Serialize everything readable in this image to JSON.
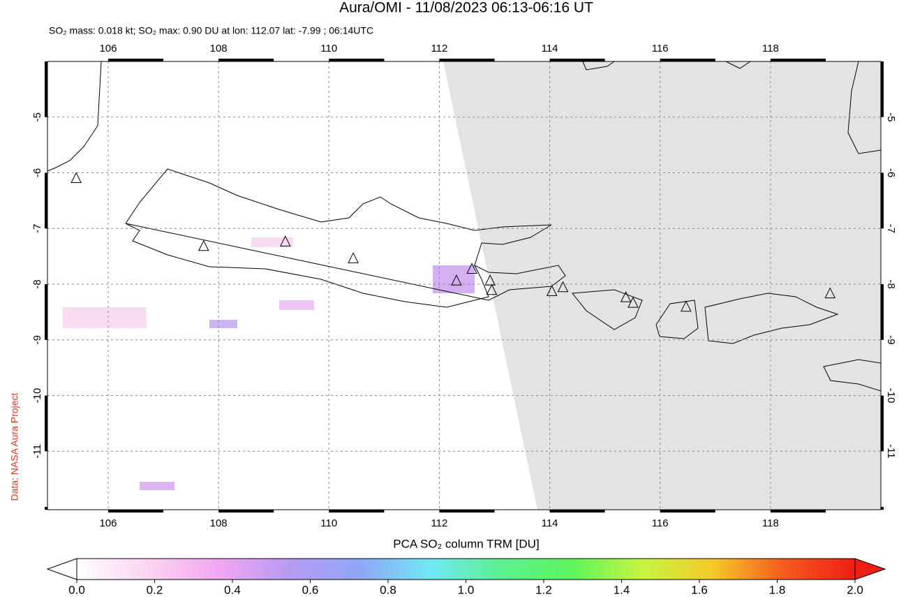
{
  "chart_data": {
    "type": "map",
    "title": "Aura/OMI - 11/08/2023 06:13-06:16 UT",
    "subtitle": "SO₂ mass: 0.018 kt; SO₂ max: 0.90 DU at lon: 112.07 lat: -7.99 ; 06:14UTC",
    "credit": "Data: NASA Aura Project",
    "xlim": [
      104.9,
      120.0
    ],
    "ylim": [
      -12.05,
      -4.0
    ],
    "xticks": [
      106,
      108,
      110,
      112,
      114,
      116,
      118
    ],
    "yticks": [
      -5,
      -6,
      -7,
      -8,
      -9,
      -10,
      -11
    ],
    "grid": true,
    "volcanoes": {
      "lon": [
        105.42,
        107.73,
        109.21,
        110.44,
        112.31,
        112.59,
        112.92,
        112.95,
        114.04,
        114.24,
        115.38,
        115.51,
        116.47,
        119.08
      ],
      "lat": [
        -6.1,
        -7.32,
        -7.24,
        -7.54,
        -7.94,
        -7.73,
        -7.94,
        -8.11,
        -8.13,
        -8.06,
        -8.24,
        -8.34,
        -8.41,
        -8.17
      ]
    },
    "colorbar": {
      "label": "PCA SO₂ column TRM [DU]",
      "lim": [
        0,
        2
      ],
      "ticks": [
        {
          "value": 0,
          "label": "0.0"
        },
        0.2,
        0.4,
        0.6,
        0.8,
        {
          "value": 1,
          "label": "1.0"
        },
        1.2,
        1.4,
        1.6,
        1.8,
        {
          "value": 2,
          "label": "2.0"
        }
      ],
      "colors": [
        "#ffffff",
        "#fbd4f0",
        "#f2a6f2",
        "#b79bf2",
        "#8fa6f7",
        "#70e8f5",
        "#5cf08f",
        "#5cf55c",
        "#c8f540",
        "#f5c828",
        "#f55a1e",
        "#f01e14"
      ]
    }
  }
}
